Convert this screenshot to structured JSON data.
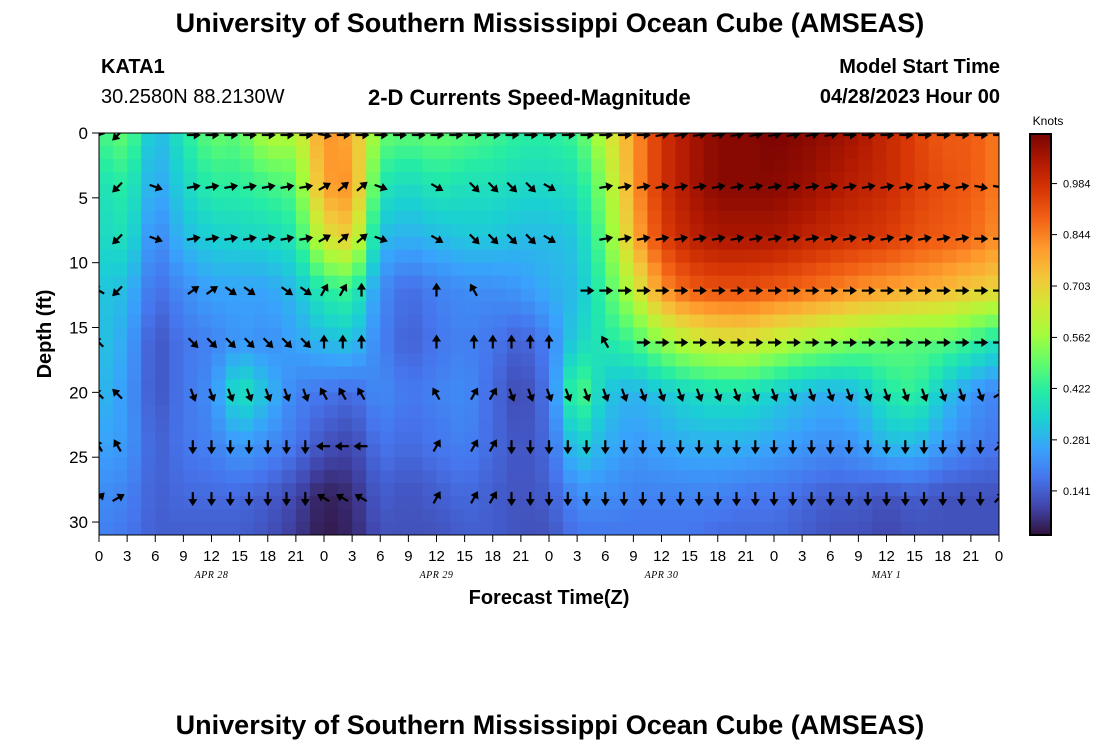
{
  "header": {
    "title": "University of Southern Mississippi Ocean Cube (AMSEAS)",
    "station": "KATA1",
    "coords": "30.2580N  88.2130W",
    "subtitle": "2-D Currents Speed-Magnitude",
    "model_start_label": "Model Start Time",
    "model_start_value": "04/28/2023 Hour 00"
  },
  "footer": {
    "title": "University of Southern Mississippi Ocean Cube (AMSEAS)"
  },
  "chart_data": {
    "type": "heatmap",
    "title": "2-D Currents Speed-Magnitude",
    "xlabel": "Forecast Time(Z)",
    "ylabel": "Depth (ft)",
    "x_hours": [
      0,
      96
    ],
    "x_tick_labels": [
      "0",
      "3",
      "6",
      "9",
      "12",
      "15",
      "18",
      "21",
      "0",
      "3",
      "6",
      "9",
      "12",
      "15",
      "18",
      "21",
      "0",
      "3",
      "6",
      "9",
      "12",
      "15",
      "18",
      "21",
      "0",
      "3",
      "6",
      "9",
      "12",
      "15",
      "18",
      "21",
      "0"
    ],
    "date_labels": [
      {
        "label": "APR 28",
        "hour": 12
      },
      {
        "label": "APR 29",
        "hour": 36
      },
      {
        "label": "APR 30",
        "hour": 60
      },
      {
        "label": "MAY 1",
        "hour": 84
      }
    ],
    "ylim": [
      31,
      0
    ],
    "y_ticks": [
      0,
      5,
      10,
      15,
      20,
      25,
      30
    ],
    "colorbar": {
      "label": "Knots",
      "range": [
        0.02,
        1.12
      ],
      "ticks": [
        "0.141",
        "0.281",
        "0.422",
        "0.562",
        "0.703",
        "0.844",
        "0.984"
      ],
      "tick_values": [
        0.141,
        0.281,
        0.422,
        0.562,
        0.703,
        0.844,
        0.984
      ]
    },
    "colormap": [
      "#30123b",
      "#4145ab",
      "#4675ed",
      "#39a2fc",
      "#1bcfd4",
      "#24eca6",
      "#61fc6c",
      "#a4fc3b",
      "#d1e834",
      "#f3c63a",
      "#fe9b2d",
      "#f36315",
      "#d93806",
      "#b11901",
      "#7a0402"
    ],
    "speed_matrix": {
      "depths_ft": [
        0,
        4,
        8,
        12,
        16,
        20,
        24,
        28,
        31
      ],
      "hours": [
        0,
        3,
        6,
        9,
        12,
        15,
        18,
        21,
        24,
        27,
        30,
        33,
        36,
        39,
        42,
        45,
        48,
        51,
        54,
        57,
        60,
        63,
        66,
        69,
        72,
        75,
        78,
        81,
        84,
        87,
        90,
        93,
        96
      ],
      "values": [
        [
          0.45,
          0.5,
          0.28,
          0.4,
          0.5,
          0.48,
          0.6,
          0.58,
          0.82,
          0.78,
          0.5,
          0.48,
          0.5,
          0.48,
          0.45,
          0.42,
          0.42,
          0.45,
          0.62,
          0.8,
          0.98,
          1.05,
          1.1,
          1.1,
          1.12,
          1.1,
          1.08,
          1.05,
          1.0,
          0.95,
          0.9,
          0.9,
          0.85
        ],
        [
          0.38,
          0.42,
          0.25,
          0.35,
          0.42,
          0.42,
          0.45,
          0.48,
          0.8,
          0.82,
          0.4,
          0.36,
          0.4,
          0.38,
          0.38,
          0.36,
          0.36,
          0.38,
          0.55,
          0.8,
          0.98,
          1.05,
          1.1,
          1.1,
          1.1,
          1.08,
          1.05,
          1.02,
          1.0,
          0.95,
          0.92,
          0.9,
          0.85
        ],
        [
          0.36,
          0.38,
          0.2,
          0.3,
          0.34,
          0.35,
          0.36,
          0.4,
          0.66,
          0.72,
          0.3,
          0.28,
          0.3,
          0.32,
          0.32,
          0.3,
          0.3,
          0.32,
          0.5,
          0.76,
          0.95,
          1.02,
          1.05,
          1.05,
          1.05,
          1.02,
          1.0,
          0.98,
          0.96,
          0.92,
          0.9,
          0.88,
          0.82
        ],
        [
          0.32,
          0.3,
          0.16,
          0.22,
          0.26,
          0.26,
          0.26,
          0.3,
          0.42,
          0.45,
          0.22,
          0.16,
          0.2,
          0.22,
          0.22,
          0.24,
          0.28,
          0.3,
          0.45,
          0.62,
          0.82,
          0.9,
          0.92,
          0.92,
          0.9,
          0.88,
          0.85,
          0.82,
          0.8,
          0.78,
          0.76,
          0.72,
          0.7
        ],
        [
          0.32,
          0.26,
          0.12,
          0.18,
          0.2,
          0.24,
          0.22,
          0.26,
          0.3,
          0.32,
          0.2,
          0.14,
          0.18,
          0.2,
          0.18,
          0.14,
          0.2,
          0.35,
          0.4,
          0.45,
          0.55,
          0.62,
          0.65,
          0.66,
          0.62,
          0.58,
          0.55,
          0.52,
          0.5,
          0.48,
          0.48,
          0.44,
          0.38
        ],
        [
          0.3,
          0.24,
          0.12,
          0.18,
          0.22,
          0.4,
          0.3,
          0.2,
          0.18,
          0.16,
          0.22,
          0.18,
          0.2,
          0.22,
          0.16,
          0.1,
          0.18,
          0.5,
          0.32,
          0.28,
          0.32,
          0.36,
          0.38,
          0.38,
          0.34,
          0.3,
          0.28,
          0.3,
          0.4,
          0.44,
          0.32,
          0.24,
          0.2
        ],
        [
          0.26,
          0.24,
          0.14,
          0.18,
          0.2,
          0.25,
          0.22,
          0.18,
          0.12,
          0.1,
          0.18,
          0.16,
          0.18,
          0.2,
          0.16,
          0.12,
          0.16,
          0.35,
          0.28,
          0.24,
          0.26,
          0.28,
          0.28,
          0.28,
          0.26,
          0.24,
          0.22,
          0.24,
          0.3,
          0.3,
          0.24,
          0.2,
          0.18
        ],
        [
          0.22,
          0.2,
          0.14,
          0.16,
          0.16,
          0.16,
          0.14,
          0.1,
          0.04,
          0.06,
          0.14,
          0.12,
          0.14,
          0.16,
          0.14,
          0.12,
          0.14,
          0.22,
          0.22,
          0.2,
          0.2,
          0.2,
          0.2,
          0.18,
          0.18,
          0.16,
          0.14,
          0.14,
          0.12,
          0.14,
          0.12,
          0.12,
          0.12
        ],
        [
          0.2,
          0.18,
          0.14,
          0.14,
          0.14,
          0.14,
          0.12,
          0.08,
          0.03,
          0.05,
          0.12,
          0.12,
          0.12,
          0.14,
          0.14,
          0.12,
          0.12,
          0.18,
          0.18,
          0.18,
          0.18,
          0.18,
          0.16,
          0.16,
          0.16,
          0.14,
          0.12,
          0.12,
          0.1,
          0.12,
          0.12,
          0.12,
          0.12
        ]
      ]
    },
    "vector_grid": {
      "hours": [
        0,
        2,
        4,
        6,
        8,
        10,
        12,
        14,
        16,
        18,
        20,
        22,
        24,
        26,
        28,
        30,
        32,
        34,
        36,
        38,
        40,
        42,
        44,
        46,
        48,
        50,
        52,
        54,
        56,
        58,
        60,
        62,
        64,
        66,
        68,
        70,
        72,
        74,
        76,
        78,
        80,
        82,
        84,
        86,
        88,
        90,
        92,
        94,
        96
      ],
      "depths_ft": [
        0,
        4,
        8,
        12,
        16,
        20,
        24,
        28
      ],
      "angles_deg_by_depth": [
        [
          200,
          -135,
          null,
          null,
          null,
          0,
          0,
          0,
          0,
          0,
          0,
          0,
          -10,
          0,
          0,
          0,
          0,
          0,
          0,
          0,
          0,
          0,
          0,
          0,
          0,
          0,
          0,
          0,
          0,
          0,
          10,
          10,
          10,
          10,
          10,
          10,
          10,
          10,
          10,
          10,
          0,
          0,
          0,
          0,
          0,
          0,
          0,
          0,
          0
        ],
        [
          null,
          -135,
          null,
          -20,
          null,
          10,
          10,
          10,
          10,
          10,
          10,
          10,
          30,
          40,
          40,
          -20,
          null,
          null,
          -30,
          null,
          -45,
          -45,
          -45,
          -45,
          -30,
          null,
          null,
          10,
          10,
          10,
          10,
          10,
          10,
          10,
          10,
          10,
          10,
          10,
          10,
          10,
          10,
          10,
          10,
          10,
          10,
          10,
          10,
          -10,
          -10
        ],
        [
          null,
          -135,
          null,
          -20,
          null,
          10,
          10,
          10,
          10,
          10,
          10,
          10,
          30,
          40,
          40,
          -20,
          null,
          null,
          -30,
          null,
          -45,
          -45,
          -45,
          -45,
          -30,
          null,
          null,
          10,
          10,
          10,
          10,
          10,
          10,
          10,
          10,
          10,
          10,
          10,
          10,
          10,
          10,
          10,
          10,
          10,
          10,
          10,
          10,
          0,
          0
        ],
        [
          150,
          -135,
          null,
          null,
          null,
          35,
          35,
          -35,
          -35,
          null,
          -35,
          -35,
          60,
          60,
          90,
          null,
          null,
          null,
          90,
          null,
          120,
          null,
          null,
          null,
          null,
          null,
          0,
          0,
          0,
          0,
          0,
          0,
          0,
          0,
          0,
          0,
          0,
          0,
          0,
          0,
          0,
          0,
          0,
          0,
          0,
          0,
          0,
          0,
          0
        ],
        [
          135,
          null,
          null,
          null,
          null,
          -45,
          -45,
          -45,
          -45,
          -45,
          -45,
          -45,
          90,
          90,
          90,
          null,
          null,
          null,
          90,
          null,
          90,
          90,
          90,
          90,
          90,
          null,
          null,
          120,
          null,
          0,
          0,
          0,
          0,
          0,
          0,
          0,
          0,
          0,
          0,
          0,
          0,
          0,
          0,
          0,
          0,
          0,
          0,
          0,
          0
        ],
        [
          135,
          135,
          null,
          null,
          null,
          -70,
          -70,
          -70,
          -70,
          -70,
          -70,
          -70,
          120,
          120,
          120,
          null,
          null,
          null,
          120,
          null,
          60,
          60,
          -70,
          -70,
          -70,
          -70,
          -70,
          -70,
          -70,
          -70,
          -70,
          -70,
          -70,
          -70,
          -70,
          -70,
          -70,
          -70,
          -70,
          -70,
          -70,
          -70,
          -70,
          -70,
          -70,
          -70,
          -70,
          -70,
          30
        ],
        [
          120,
          120,
          null,
          null,
          null,
          -90,
          -90,
          -90,
          -90,
          -90,
          -90,
          -90,
          180,
          180,
          180,
          null,
          null,
          null,
          60,
          null,
          60,
          60,
          -90,
          -90,
          -90,
          -90,
          -90,
          -90,
          -90,
          -90,
          -90,
          -90,
          -90,
          -90,
          -90,
          -90,
          -90,
          -90,
          -90,
          -90,
          -90,
          -90,
          -90,
          -90,
          -90,
          -90,
          -90,
          -90,
          45
        ],
        [
          45,
          30,
          null,
          null,
          null,
          -90,
          -90,
          -90,
          -90,
          -90,
          -90,
          -90,
          150,
          150,
          150,
          null,
          null,
          null,
          60,
          null,
          60,
          60,
          -90,
          -90,
          -90,
          -90,
          -90,
          -90,
          -90,
          -90,
          -90,
          -90,
          -90,
          -90,
          -90,
          -90,
          -90,
          -90,
          -90,
          -90,
          -90,
          -90,
          -90,
          -90,
          -90,
          -90,
          -90,
          -90,
          45
        ]
      ]
    }
  }
}
